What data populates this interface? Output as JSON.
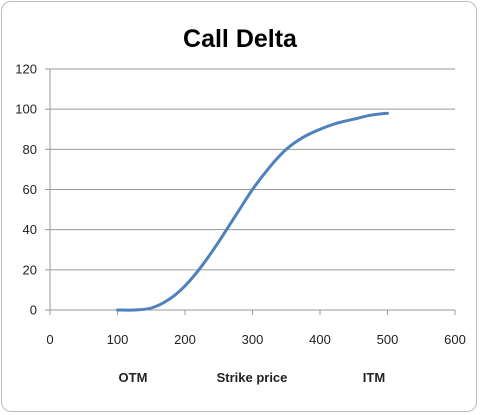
{
  "chart_data": {
    "type": "line",
    "title": "Call Delta",
    "xlabel": "",
    "ylabel": "",
    "xlim": [
      0,
      600
    ],
    "ylim": [
      0,
      120
    ],
    "x_ticks": [
      "0",
      "100",
      "200",
      "300",
      "400",
      "500",
      "600"
    ],
    "y_ticks": [
      "0",
      "20",
      "40",
      "60",
      "80",
      "100",
      "120"
    ],
    "grid": "horizontal",
    "legend": "none",
    "line_color": "#4f81bd",
    "annotations": [
      "OTM",
      "Strike price",
      "ITM"
    ],
    "series": [
      {
        "x": [
          100,
          125,
          150,
          175,
          200,
          225,
          250,
          275,
          300,
          325,
          350,
          375,
          400,
          425,
          450,
          475,
          500
        ],
        "values": [
          0,
          0,
          1,
          5,
          12,
          22,
          34,
          47,
          60,
          71,
          80,
          86,
          90,
          93,
          95,
          97,
          98
        ]
      }
    ]
  }
}
